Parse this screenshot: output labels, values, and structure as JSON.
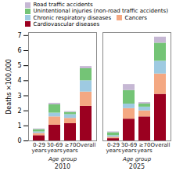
{
  "chart_data": {
    "type": "bar",
    "stacked": true,
    "categories": [
      "0-29\nyears",
      "30-69\nyears",
      "≥70\nyears",
      "Overall",
      "0-29\nyears",
      "30-69\nyears",
      "≥70\nyears",
      "Overall"
    ],
    "annotations": [
      "Age group",
      "2010",
      "Age group",
      "2025"
    ],
    "series": [
      {
        "name": "Cardiovascular diseases",
        "color": "#9B0020",
        "values": [
          0.35,
          1.05,
          1.15,
          2.3,
          0.15,
          1.45,
          1.6,
          3.1
        ]
      },
      {
        "name": "Cancers",
        "color": "#F4A882",
        "values": [
          0.15,
          0.55,
          0.35,
          0.95,
          0.1,
          0.7,
          0.4,
          1.35
        ]
      },
      {
        "name": "Chronic respiratory diseases",
        "color": "#9ECAE1",
        "values": [
          0.1,
          0.25,
          0.25,
          0.75,
          0.1,
          0.3,
          0.25,
          0.85
        ]
      },
      {
        "name": "Unintentional injuries (non-road traffic accidents)",
        "color": "#74C476",
        "values": [
          0.15,
          0.55,
          0.15,
          0.8,
          0.2,
          0.9,
          0.2,
          1.2
        ]
      },
      {
        "name": "Road traffic accidents",
        "color": "#C6B8D4",
        "values": [
          0.05,
          0.1,
          0.05,
          0.15,
          0.05,
          0.4,
          0.1,
          0.4
        ]
      }
    ],
    "ylabel": "Deaths ×100,000",
    "ylim": [
      0,
      7.2
    ],
    "yticks": [
      0,
      1,
      2,
      3,
      4,
      5,
      6,
      7
    ],
    "grid": false,
    "legend": "upper left"
  }
}
